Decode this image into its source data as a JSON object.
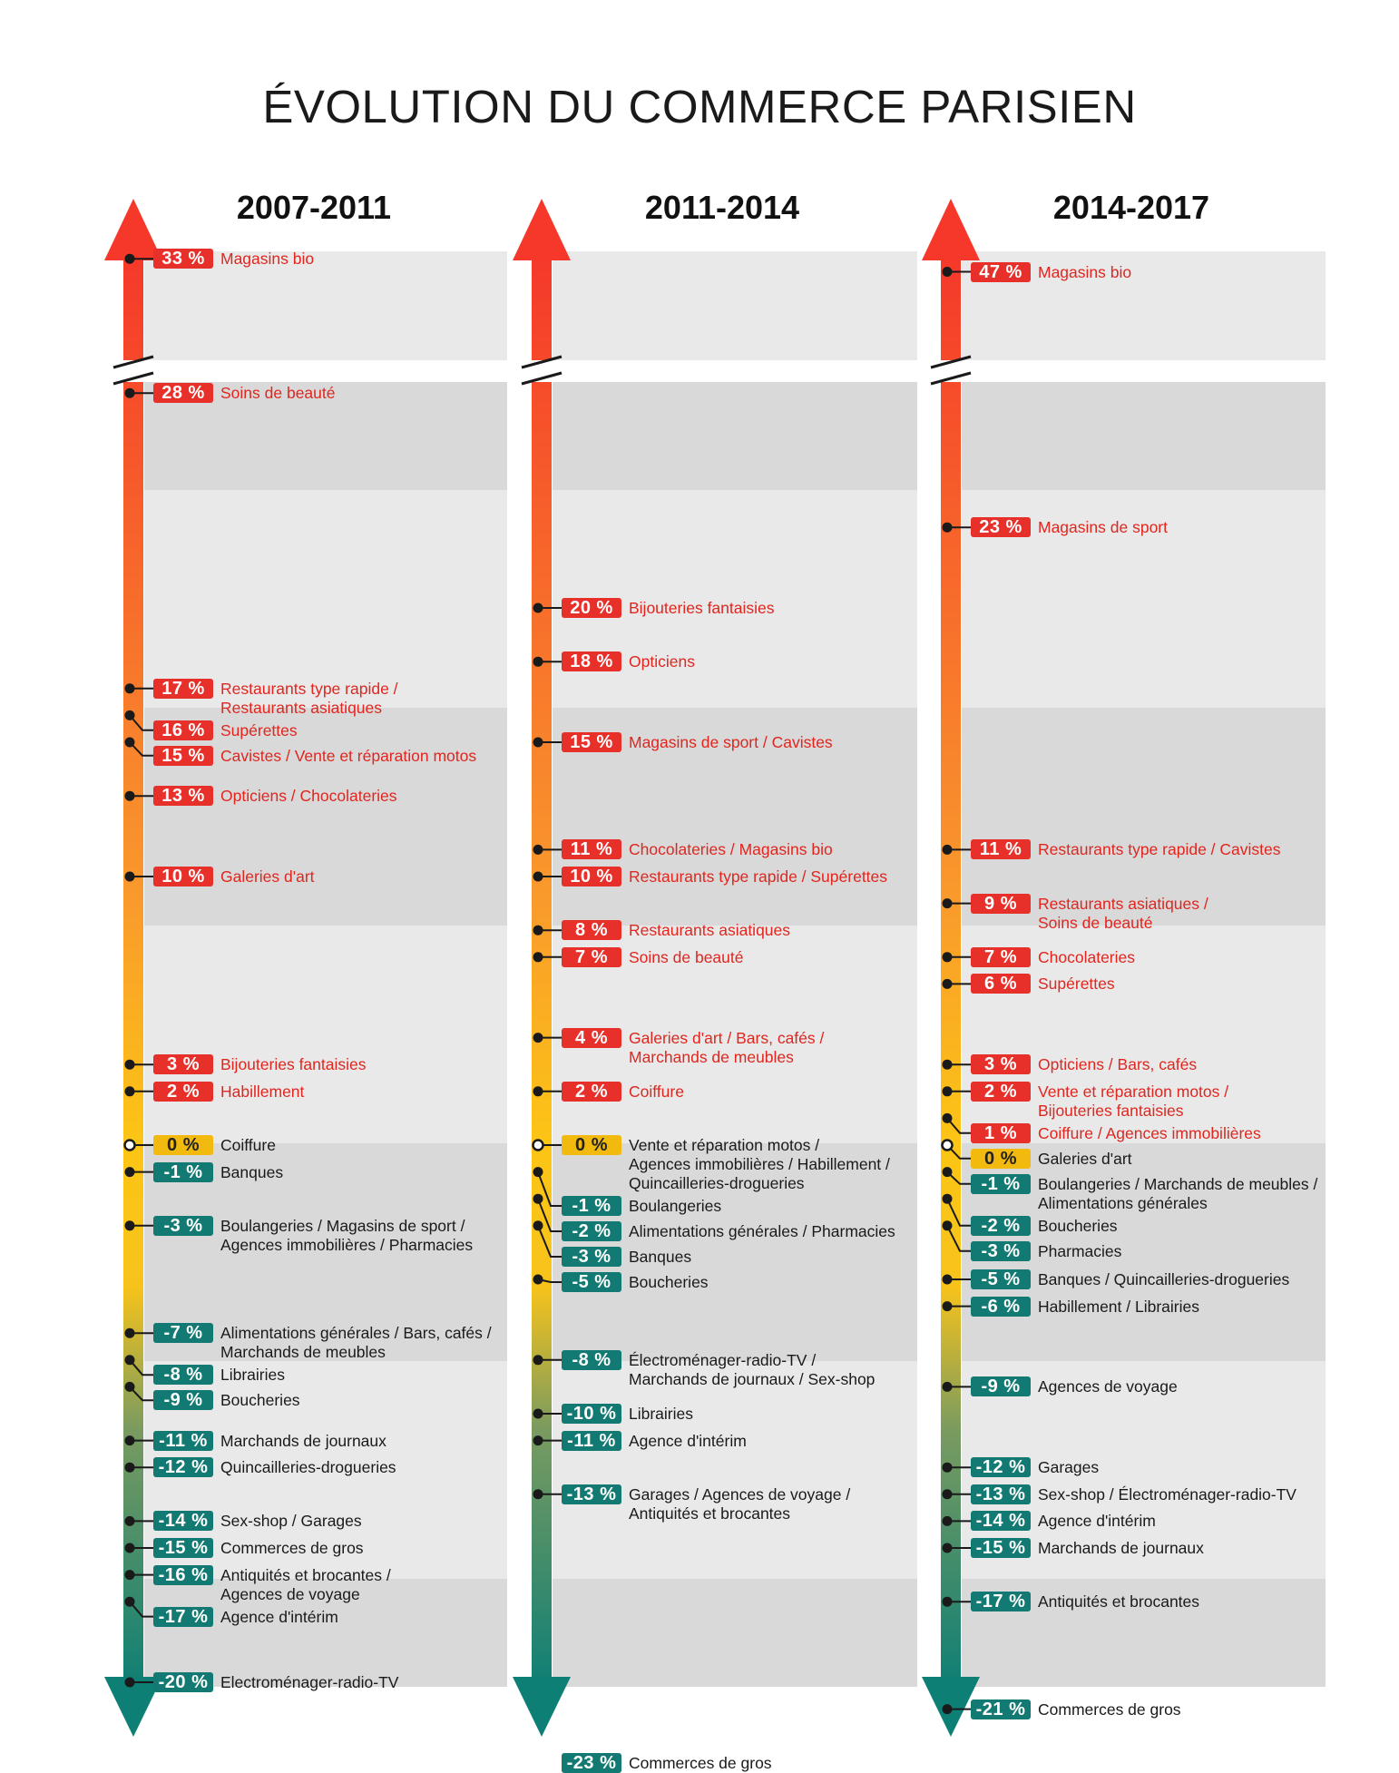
{
  "title": "ÉVOLUTION DU COMMERCE PARISIEN",
  "colors": {
    "positive": "#e8302a",
    "negative": "#137a73",
    "zero": "#f2b90f"
  },
  "chart_data": {
    "type": "table",
    "title": "ÉVOLUTION DU COMMERCE PARISIEN",
    "periods": [
      {
        "title": "2007-2011",
        "entries": [
          {
            "value": 33,
            "badge": "33 %",
            "label": "Magasins bio"
          },
          {
            "value": 28,
            "badge": "28 %",
            "label": "Soins de beauté"
          },
          {
            "value": 17,
            "badge": "17 %",
            "label": "Restaurants type rapide /\nRestaurants asiatiques"
          },
          {
            "value": 16,
            "badge": "16 %",
            "label": "Supérettes"
          },
          {
            "value": 15,
            "badge": "15 %",
            "label": "Cavistes / Vente et réparation motos"
          },
          {
            "value": 13,
            "badge": "13 %",
            "label": "Opticiens / Chocolateries"
          },
          {
            "value": 10,
            "badge": "10 %",
            "label": "Galeries d'art"
          },
          {
            "value": 3,
            "badge": "3 %",
            "label": "Bijouteries fantaisies"
          },
          {
            "value": 2,
            "badge": "2 %",
            "label": "Habillement"
          },
          {
            "value": 0,
            "badge": "0 %",
            "label": "Coiffure"
          },
          {
            "value": -1,
            "badge": "-1 %",
            "label": "Banques"
          },
          {
            "value": -3,
            "badge": "-3 %",
            "label": "Boulangeries / Magasins de sport /\nAgences immobilières / Pharmacies"
          },
          {
            "value": -7,
            "badge": "-7 %",
            "label": "Alimentations générales / Bars, cafés /\nMarchands de meubles"
          },
          {
            "value": -8,
            "badge": "-8 %",
            "label": "Librairies"
          },
          {
            "value": -9,
            "badge": "-9 %",
            "label": "Boucheries"
          },
          {
            "value": -11,
            "badge": "-11 %",
            "label": "Marchands de journaux"
          },
          {
            "value": -12,
            "badge": "-12 %",
            "label": "Quincailleries-drogueries"
          },
          {
            "value": -14,
            "badge": "-14 %",
            "label": "Sex-shop / Garages"
          },
          {
            "value": -15,
            "badge": "-15 %",
            "label": "Commerces de gros"
          },
          {
            "value": -16,
            "badge": "-16 %",
            "label": "Antiquités et brocantes /\nAgences de voyage"
          },
          {
            "value": -17,
            "badge": "-17 %",
            "label": "Agence d'intérim"
          },
          {
            "value": -20,
            "badge": "-20 %",
            "label": "Electroménager-radio-TV"
          }
        ]
      },
      {
        "title": "2011-2014",
        "entries": [
          {
            "value": 20,
            "badge": "20 %",
            "label": "Bijouteries fantaisies"
          },
          {
            "value": 18,
            "badge": "18 %",
            "label": "Opticiens"
          },
          {
            "value": 15,
            "badge": "15 %",
            "label": "Magasins de sport / Cavistes"
          },
          {
            "value": 11,
            "badge": "11 %",
            "label": "Chocolateries / Magasins bio"
          },
          {
            "value": 10,
            "badge": "10 %",
            "label": "Restaurants type rapide / Supérettes"
          },
          {
            "value": 8,
            "badge": "8 %",
            "label": "Restaurants asiatiques"
          },
          {
            "value": 7,
            "badge": "7 %",
            "label": "Soins de beauté"
          },
          {
            "value": 4,
            "badge": "4 %",
            "label": "Galeries d'art / Bars, cafés /\nMarchands de meubles"
          },
          {
            "value": 2,
            "badge": "2 %",
            "label": "Coiffure"
          },
          {
            "value": 0,
            "badge": "0 %",
            "label": "Vente et réparation motos /\nAgences immobilières / Habillement /\nQuincailleries-drogueries"
          },
          {
            "value": -1,
            "badge": "-1 %",
            "label": "Boulangeries"
          },
          {
            "value": -2,
            "badge": "-2 %",
            "label": "Alimentations générales / Pharmacies"
          },
          {
            "value": -3,
            "badge": "-3 %",
            "label": "Banques"
          },
          {
            "value": -5,
            "badge": "-5 %",
            "label": "Boucheries"
          },
          {
            "value": -8,
            "badge": "-8 %",
            "label": "Électroménager-radio-TV /\nMarchands de journaux / Sex-shop"
          },
          {
            "value": -10,
            "badge": "-10 %",
            "label": "Librairies"
          },
          {
            "value": -11,
            "badge": "-11 %",
            "label": "Agence d'intérim"
          },
          {
            "value": -13,
            "badge": "-13 %",
            "label": "Garages / Agences de voyage /\nAntiquités et brocantes"
          },
          {
            "value": -23,
            "badge": "-23 %",
            "label": "Commerces de gros"
          }
        ]
      },
      {
        "title": "2014-2017",
        "entries": [
          {
            "value": 47,
            "badge": "47 %",
            "label": "Magasins bio"
          },
          {
            "value": 23,
            "badge": "23 %",
            "label": "Magasins de sport"
          },
          {
            "value": 11,
            "badge": "11 %",
            "label": "Restaurants type rapide / Cavistes"
          },
          {
            "value": 9,
            "badge": "9 %",
            "label": "Restaurants asiatiques /\nSoins de beauté"
          },
          {
            "value": 7,
            "badge": "7 %",
            "label": "Chocolateries"
          },
          {
            "value": 6,
            "badge": "6 %",
            "label": "Supérettes"
          },
          {
            "value": 3,
            "badge": "3 %",
            "label": "Opticiens / Bars, cafés"
          },
          {
            "value": 2,
            "badge": "2 %",
            "label": "Vente et réparation motos /\nBijouteries fantaisies"
          },
          {
            "value": 1,
            "badge": "1 %",
            "label": "Coiffure / Agences immobilières"
          },
          {
            "value": 0,
            "badge": "0 %",
            "label": "Galeries d'art"
          },
          {
            "value": -1,
            "badge": "-1 %",
            "label": "Boulangeries / Marchands de meubles /\nAlimentations générales"
          },
          {
            "value": -2,
            "badge": "-2 %",
            "label": "Boucheries"
          },
          {
            "value": -3,
            "badge": "-3 %",
            "label": "Pharmacies"
          },
          {
            "value": -5,
            "badge": "-5 %",
            "label": "Banques / Quincailleries-drogueries"
          },
          {
            "value": -6,
            "badge": "-6 %",
            "label": "Habillement / Librairies"
          },
          {
            "value": -9,
            "badge": "-9 %",
            "label": "Agences de voyage"
          },
          {
            "value": -12,
            "badge": "-12 %",
            "label": "Garages"
          },
          {
            "value": -13,
            "badge": "-13 %",
            "label": "Sex-shop / Électroménager-radio-TV"
          },
          {
            "value": -14,
            "badge": "-14 %",
            "label": "Agence d'intérim"
          },
          {
            "value": -15,
            "badge": "-15 %",
            "label": "Marchands de journaux"
          },
          {
            "value": -17,
            "badge": "-17 %",
            "label": "Antiquités et brocantes"
          },
          {
            "value": -21,
            "badge": "-21 %",
            "label": "Commerces de gros"
          }
        ]
      }
    ]
  }
}
